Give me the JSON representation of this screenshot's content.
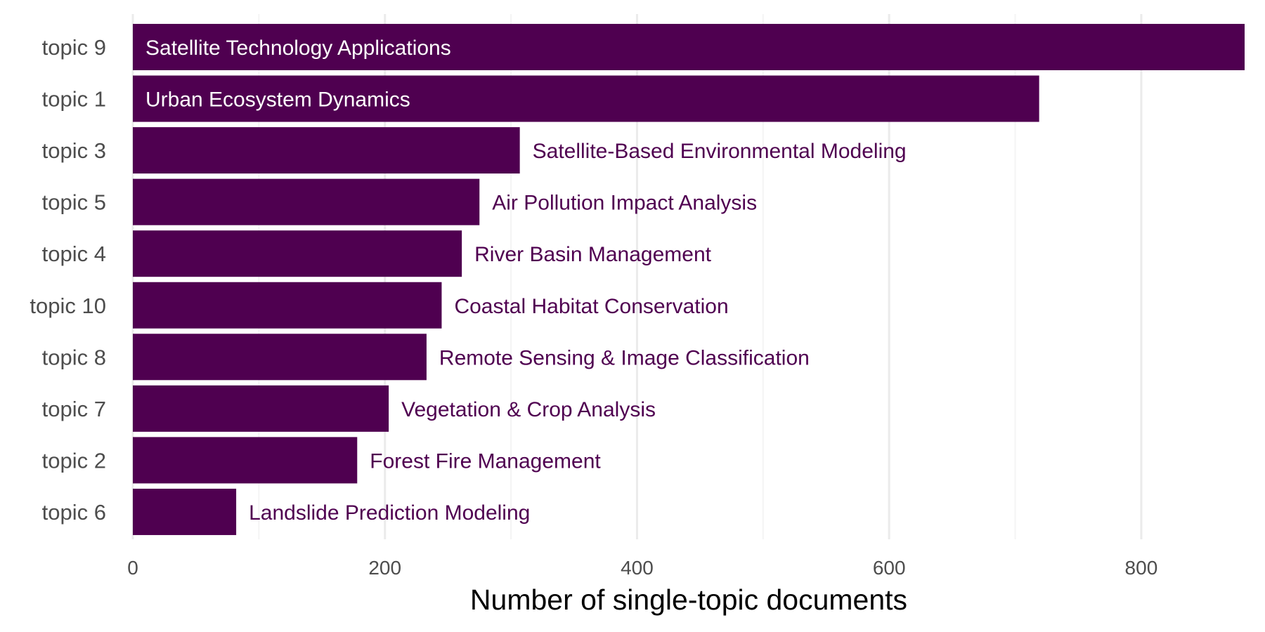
{
  "chart_data": {
    "type": "bar",
    "orientation": "horizontal",
    "title": "",
    "xlabel": "Number of single-topic documents",
    "ylabel": "",
    "xlim": [
      0,
      882
    ],
    "x_ticks": [
      0,
      200,
      400,
      600,
      800
    ],
    "grid": "vertical major gridlines",
    "legend": "none",
    "bar_color": "#4f0050",
    "label_inside_color": "#ffffff",
    "label_outside_color": "#4f0050",
    "categories": [
      "topic 9",
      "topic 1",
      "topic 3",
      "topic 5",
      "topic 4",
      "topic 10",
      "topic 8",
      "topic 7",
      "topic 2",
      "topic 6"
    ],
    "values": [
      882,
      719,
      307,
      275,
      261,
      245,
      233,
      203,
      178,
      82
    ],
    "labels": [
      "Satellite Technology Applications",
      "Urban Ecosystem Dynamics",
      "Satellite-Based Environmental Modeling",
      "Air Pollution Impact Analysis",
      "River Basin Management",
      "Coastal Habitat Conservation",
      "Remote Sensing & Image Classification",
      "Vegetation & Crop Analysis",
      "Forest Fire Management",
      "Landslide Prediction Modeling"
    ],
    "labels_inside": [
      true,
      true,
      false,
      false,
      false,
      false,
      false,
      false,
      false,
      false
    ]
  }
}
